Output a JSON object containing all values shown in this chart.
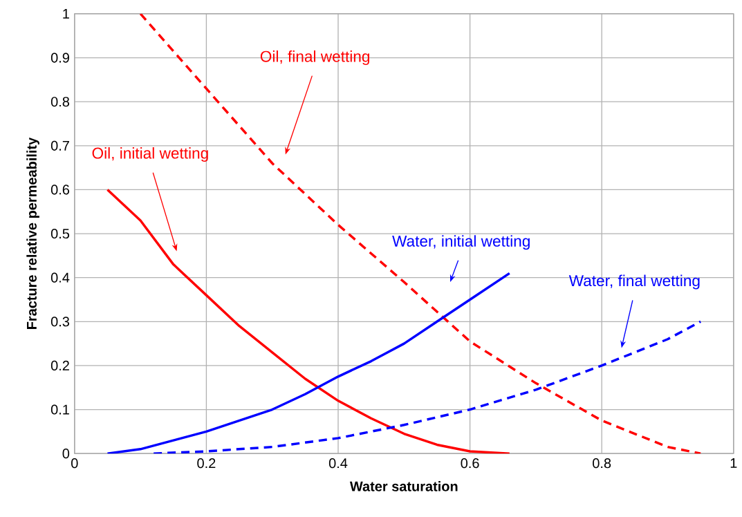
{
  "chart_data": {
    "type": "line",
    "xlabel": "Water saturation",
    "ylabel": "Fracture relative permeability",
    "xlim": [
      0,
      1
    ],
    "ylim": [
      0,
      1
    ],
    "xticks": [
      0,
      0.2,
      0.4,
      0.6,
      0.8,
      1
    ],
    "yticks": [
      0,
      0.1,
      0.2,
      0.3,
      0.4,
      0.5,
      0.6,
      0.7,
      0.8,
      0.9,
      1
    ],
    "grid": true,
    "marker": "none",
    "series": [
      {
        "color": "#ff0000",
        "line_style": "solid",
        "x": [
          0.05,
          0.1,
          0.15,
          0.2,
          0.25,
          0.3,
          0.35,
          0.4,
          0.45,
          0.5,
          0.55,
          0.6,
          0.66
        ],
        "values": [
          0.6,
          0.53,
          0.43,
          0.36,
          0.29,
          0.23,
          0.17,
          0.12,
          0.08,
          0.045,
          0.02,
          0.005,
          0
        ]
      },
      {
        "color": "#ff0000",
        "line_style": "dashed",
        "x": [
          0.1,
          0.2,
          0.3,
          0.4,
          0.5,
          0.6,
          0.7,
          0.8,
          0.9,
          0.95
        ],
        "values": [
          1,
          0.83,
          0.66,
          0.52,
          0.39,
          0.255,
          0.16,
          0.075,
          0.015,
          0
        ]
      },
      {
        "color": "#0000ff",
        "line_style": "solid",
        "x": [
          0.05,
          0.1,
          0.15,
          0.2,
          0.25,
          0.3,
          0.35,
          0.4,
          0.45,
          0.5,
          0.55,
          0.6,
          0.66
        ],
        "values": [
          0,
          0.01,
          0.03,
          0.05,
          0.075,
          0.1,
          0.135,
          0.175,
          0.21,
          0.25,
          0.3,
          0.35,
          0.41
        ]
      },
      {
        "color": "#0000ff",
        "line_style": "dashed",
        "x": [
          0.12,
          0.2,
          0.3,
          0.4,
          0.5,
          0.6,
          0.7,
          0.8,
          0.9,
          0.95
        ],
        "values": [
          0,
          0.005,
          0.015,
          0.035,
          0.065,
          0.1,
          0.145,
          0.2,
          0.26,
          0.3
        ]
      }
    ],
    "annotations": [
      "Oil, initial wetting",
      "Oil, final wetting",
      "Water, initial wetting",
      "Water, final wetting"
    ]
  }
}
